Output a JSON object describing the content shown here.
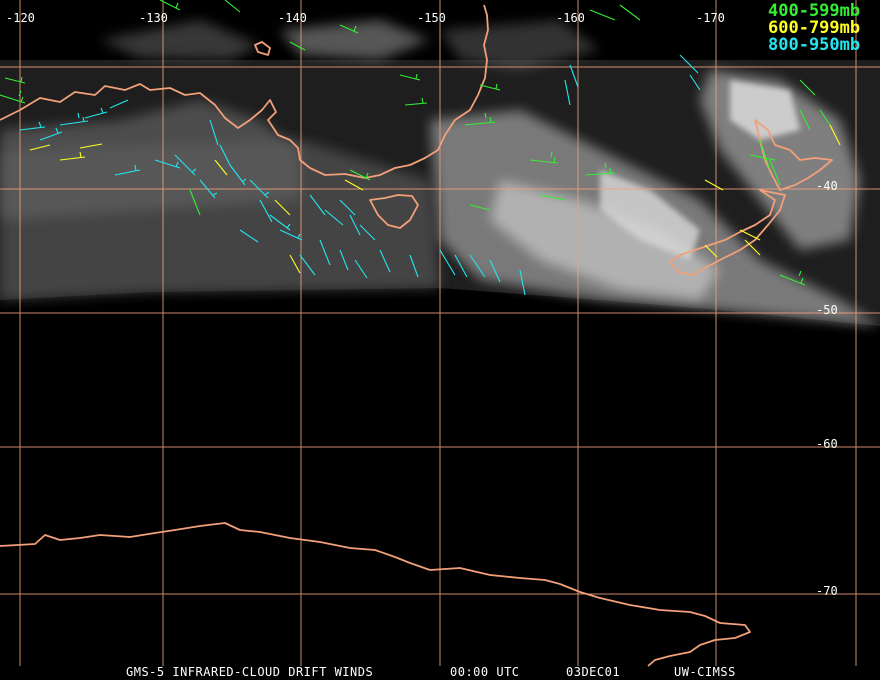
{
  "longitudes": [
    "-120",
    "-130",
    "-140",
    "-150",
    "-160",
    "-170"
  ],
  "latitudes": [
    "-40",
    "-50",
    "-60",
    "-70"
  ],
  "legend": [
    {
      "label": "400-599mb",
      "color": "#33ee33"
    },
    {
      "label": "600-799mb",
      "color": "#ffff22"
    },
    {
      "label": "800-950mb",
      "color": "#22e6ee"
    }
  ],
  "footer": {
    "product": "GMS-5 INFRARED-CLOUD DRIFT WINDS",
    "time": "00:00 UTC",
    "date": "03DEC01",
    "source": "UW-CIMSS"
  },
  "colors": {
    "coastline": "#f2a07a",
    "grid": "#f2a07a",
    "background": "#000000"
  }
}
